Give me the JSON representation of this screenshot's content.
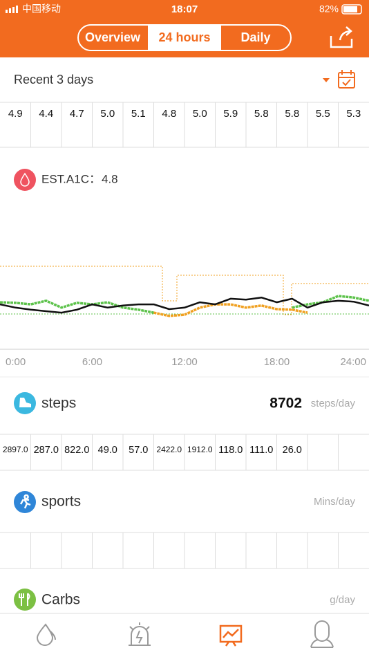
{
  "status_bar": {
    "carrier": "中国移动",
    "time": "18:07",
    "battery": "82%"
  },
  "tabs": [
    "Overview",
    "24 hours",
    "Daily"
  ],
  "range": "Recent 3 days",
  "daily_values": [
    "4.9",
    "4.4",
    "4.7",
    "5.0",
    "5.1",
    "4.8",
    "5.0",
    "5.9",
    "5.8",
    "5.8",
    "5.5",
    "5.3"
  ],
  "est_a1c": {
    "label": "EST.A1C：",
    "value": 4.8
  },
  "chart_data": {
    "type": "line",
    "x": [
      0,
      1,
      2,
      3,
      4,
      5,
      6,
      7,
      8,
      9,
      10,
      11,
      12,
      13,
      14,
      15,
      16,
      17,
      18,
      19,
      20,
      21,
      22,
      23,
      24
    ],
    "series": [
      {
        "color": "#5cc24a",
        "values": [
          4.58,
          4.56,
          4.51,
          4.63,
          4.4,
          4.56,
          4.51,
          4.58,
          4.4,
          4.33,
          4.23,
          null,
          null,
          null,
          null,
          null,
          null,
          null,
          null,
          4.4,
          4.51,
          4.58,
          4.79,
          4.74,
          4.63
        ]
      },
      {
        "color": "#f0a020",
        "values": [
          null,
          null,
          null,
          null,
          null,
          null,
          null,
          null,
          null,
          null,
          4.23,
          4.12,
          4.16,
          4.4,
          4.51,
          4.51,
          4.4,
          4.47,
          4.35,
          4.33,
          4.23,
          null,
          null,
          null,
          null
        ]
      },
      {
        "color": "#111111",
        "values": [
          4.51,
          4.4,
          4.33,
          4.28,
          4.23,
          4.33,
          4.51,
          4.4,
          4.47,
          4.51,
          4.51,
          4.35,
          4.4,
          4.58,
          4.51,
          4.7,
          4.67,
          4.74,
          4.58,
          4.7,
          4.4,
          4.58,
          4.63,
          4.6,
          4.47
        ]
      }
    ],
    "xlim": [
      0,
      24
    ],
    "ylim": [
      3,
      8
    ],
    "xticks": [
      {
        "value": 0,
        "label": "0:00"
      },
      {
        "value": 6,
        "label": "6:00"
      },
      {
        "value": 12,
        "label": "12:00"
      },
      {
        "value": 18,
        "label": "18:00"
      },
      {
        "value": 24,
        "label": "24:00"
      }
    ]
  },
  "steps": {
    "title": "steps",
    "total": 8702,
    "unit": "steps/day",
    "values": [
      "2897.0",
      "287.0",
      "822.0",
      "49.0",
      "57.0",
      "2422.0",
      "1912.0",
      "118.0",
      "111.0",
      "26.0"
    ]
  },
  "sports": {
    "title": "sports",
    "unit": "Mins/day"
  },
  "carbs": {
    "title": "Carbs",
    "unit": "g/day"
  }
}
